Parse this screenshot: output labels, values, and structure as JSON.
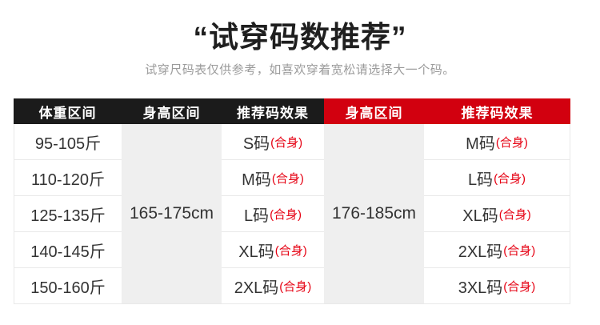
{
  "page": {
    "title": "“试穿码数推荐”",
    "subtitle": "试穿尺码表仅供参考，如喜欢穿着宽松请选择大一个码。"
  },
  "colors": {
    "header_black_bg": "#1b1b1b",
    "header_red_bg": "#d2000f",
    "fit_text_red": "#e60012",
    "merged_cell_gray": "#efefef",
    "body_text": "#333333",
    "subtitle_gray": "#9b9b9b",
    "row_border": "#e9e9e9"
  },
  "table": {
    "headers": {
      "weight": "体重区间",
      "height_left": "身高区间",
      "effect_left": "推荐码效果",
      "height_right": "身高区间",
      "effect_right": "推荐码效果"
    },
    "height_left_value": "165-175cm",
    "height_right_value": "176-185cm",
    "rows": [
      {
        "weight": "95-105斤",
        "left_size": "S码",
        "left_fit": "(合身)",
        "right_size": "M码",
        "right_fit": "(合身)"
      },
      {
        "weight": "110-120斤",
        "left_size": "M码",
        "left_fit": "(合身)",
        "right_size": "L码",
        "right_fit": "(合身)"
      },
      {
        "weight": "125-135斤",
        "left_size": "L码",
        "left_fit": "(合身)",
        "right_size": "XL码",
        "right_fit": "(合身)"
      },
      {
        "weight": "140-145斤",
        "left_size": "XL码",
        "left_fit": "(合身)",
        "right_size": "2XL码",
        "right_fit": "(合身)"
      },
      {
        "weight": "150-160斤",
        "left_size": "2XL码",
        "left_fit": "(合身)",
        "right_size": "3XL码",
        "right_fit": "(合身)"
      }
    ]
  }
}
